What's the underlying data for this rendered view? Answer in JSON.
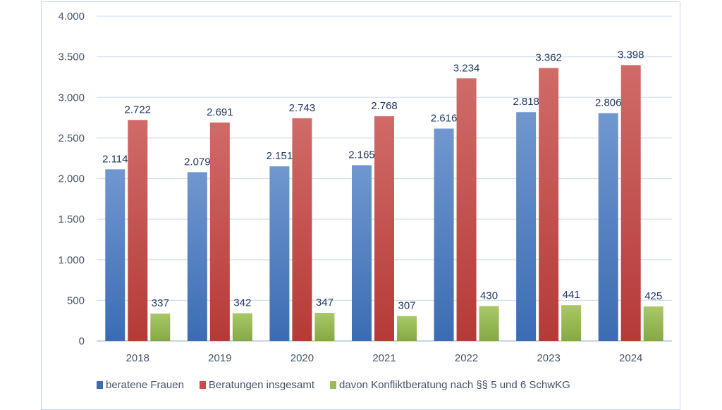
{
  "chart_data": {
    "type": "bar",
    "categories": [
      "2018",
      "2019",
      "2020",
      "2021",
      "2022",
      "2023",
      "2024"
    ],
    "series": [
      {
        "name": "beratene Frauen",
        "color": "#4f7fc0",
        "values": [
          2114,
          2079,
          2151,
          2165,
          2616,
          2818,
          2806
        ],
        "labels": [
          "2.114",
          "2.079",
          "2.151",
          "2.165",
          "2.616",
          "2.818",
          "2.806"
        ]
      },
      {
        "name": "Beratungen insgesamt",
        "color": "#c0504d",
        "values": [
          2722,
          2691,
          2743,
          2768,
          3234,
          3362,
          3398
        ],
        "labels": [
          "2.722",
          "2.691",
          "2.743",
          "2.768",
          "3.234",
          "3.362",
          "3.398"
        ]
      },
      {
        "name": "davon Konfliktberatung nach §§ 5 und 6 SchwKG",
        "color": "#9bbb59",
        "values": [
          337,
          342,
          347,
          307,
          430,
          441,
          425
        ],
        "labels": [
          "337",
          "342",
          "347",
          "307",
          "430",
          "441",
          "425"
        ]
      }
    ],
    "ylim": [
      0,
      4000
    ],
    "yticks": [
      0,
      500,
      1000,
      1500,
      2000,
      2500,
      3000,
      3500,
      4000
    ],
    "ytick_labels": [
      "0",
      "500",
      "1.000",
      "1.500",
      "2.000",
      "2.500",
      "3.000",
      "3.500",
      "4.000"
    ],
    "grid": true,
    "legend": "bottom",
    "title": "",
    "xlabel": "",
    "ylabel": ""
  }
}
